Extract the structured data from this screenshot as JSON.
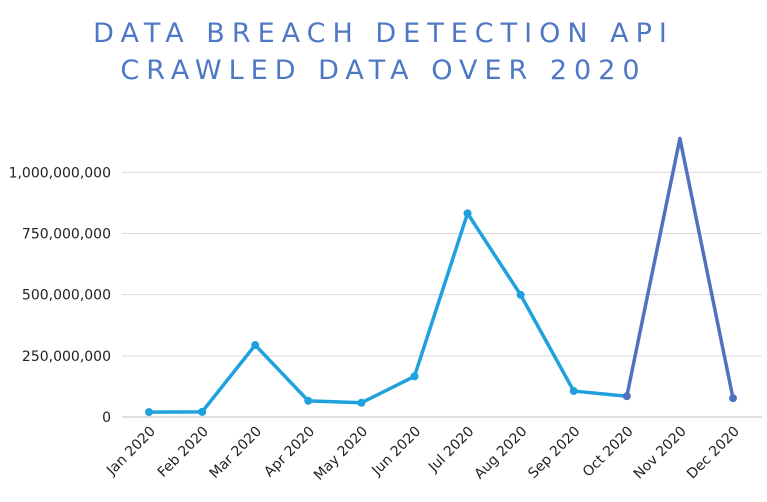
{
  "chart_data": {
    "type": "line",
    "title_line1": "DATA BREACH DETECTION API",
    "title_line2": "CRAWLED DATA OVER 2020",
    "categories": [
      "Jan 2020",
      "Feb 2020",
      "Mar 2020",
      "Apr 2020",
      "May 2020",
      "Jun 2020",
      "Jul 2020",
      "Aug 2020",
      "Sep 2020",
      "Oct 2020",
      "Nov 2020",
      "Dec 2020"
    ],
    "values": [
      20000000,
      21000000,
      294000000,
      66000000,
      58000000,
      166000000,
      832000000,
      499000000,
      106000000,
      85000000,
      1138000000,
      77000000
    ],
    "ylim": [
      0,
      1140000000
    ],
    "yticks": [
      0,
      250000000,
      500000000,
      750000000,
      1000000000
    ],
    "ytick_labels": [
      "0",
      "250,000,000",
      "500,000,000",
      "750,000,000",
      "1,000,000,000"
    ],
    "grid": true,
    "colors": {
      "line_primary": "#1ea1dc",
      "line_secondary": "#5072be",
      "title": "#4f78c4",
      "grid": "#d9d9d9",
      "axis": "#bfbfbf"
    },
    "secondary_from_index": 9
  }
}
